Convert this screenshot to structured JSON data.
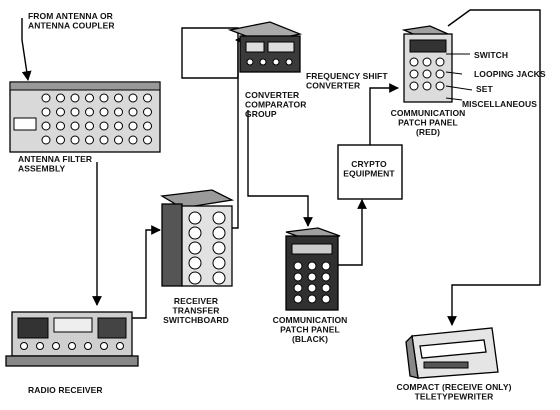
{
  "labels": {
    "antenna_source": [
      "FROM ANTENNA OR",
      "ANTENNA COUPLER"
    ],
    "antenna_filter": [
      "ANTENNA FILTER",
      "ASSEMBLY"
    ],
    "radio_receiver": [
      "RADIO RECEIVER"
    ],
    "receiver_switchboard": [
      "RECEIVER",
      "TRANSFER",
      "SWITCHBOARD"
    ],
    "frequency_shift": [
      "FREQUENCY SHIFT",
      "CONVERTER"
    ],
    "converter_group": [
      "CONVERTER",
      "COMPARATOR",
      "GROUP"
    ],
    "patch_black": [
      "COMMUNICATION",
      "PATCH PANEL",
      "(BLACK)"
    ],
    "crypto": [
      "CRYPTO",
      "EQUIPMENT"
    ],
    "patch_red_parts": [
      "SWITCH",
      "LOOPING JACKS",
      "SET",
      "MISCELLANEOUS"
    ],
    "patch_red": [
      "COMMUNICATION",
      "PATCH PANEL",
      "(RED)"
    ],
    "teletypewriter": [
      "COMPACT (RECEIVE ONLY)",
      "TELETYPEWRITER"
    ]
  }
}
